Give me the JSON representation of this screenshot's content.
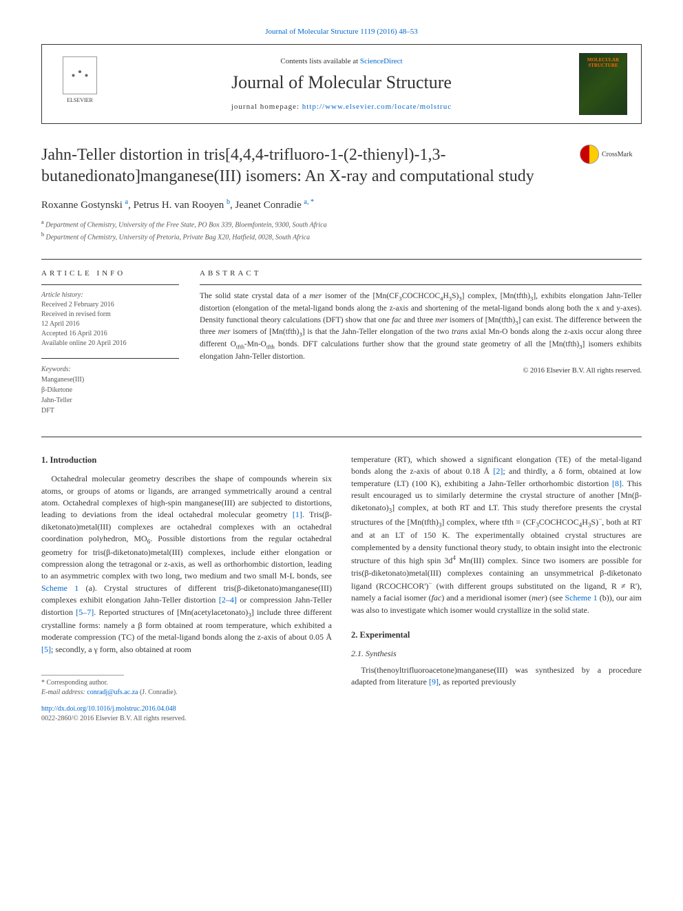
{
  "top_citation": "Journal of Molecular Structure 1119 (2016) 48–53",
  "header": {
    "contents_prefix": "Contents lists available at ",
    "contents_link": "ScienceDirect",
    "journal_name": "Journal of Molecular Structure",
    "homepage_prefix": "journal homepage: ",
    "homepage_url": "http://www.elsevier.com/locate/molstruc",
    "publisher_logo_label": "ELSEVIER"
  },
  "title": "Jahn-Teller distortion in tris[4,4,4-trifluoro-1-(2-thienyl)-1,3-butanedionato]manganese(III) isomers: An X-ray and computational study",
  "crossmark_label": "CrossMark",
  "authors_html": "Roxanne Gostynski <sup class='author-sup'>a</sup>, Petrus H. van Rooyen <sup class='author-sup'>b</sup>, Jeanet Conradie <sup class='author-sup'>a, *</sup>",
  "affiliations": [
    {
      "sup": "a",
      "text": "Department of Chemistry, University of the Free State, PO Box 339, Bloemfontein, 9300, South Africa"
    },
    {
      "sup": "b",
      "text": "Department of Chemistry, University of Pretoria, Private Bag X20, Hatfield, 0028, South Africa"
    }
  ],
  "article_info": {
    "label": "ARTICLE INFO",
    "history_label": "Article history:",
    "lines": [
      "Received 2 February 2016",
      "Received in revised form",
      "12 April 2016",
      "Accepted 16 April 2016",
      "Available online 20 April 2016"
    ],
    "keywords_label": "Keywords:",
    "keywords": [
      "Manganese(III)",
      "β-Diketone",
      "Jahn-Teller",
      "DFT"
    ]
  },
  "abstract": {
    "label": "ABSTRACT",
    "text_html": "The solid state crystal data of a <i>mer</i> isomer of the [Mn(CF<sub>3</sub>COCHCOC<sub>4</sub>H<sub>3</sub>S)<sub>3</sub>] complex, [Mn(tfth)<sub>3</sub>], exhibits elongation Jahn-Teller distortion (elongation of the metal-ligand bonds along the z-axis and shortening of the metal-ligand bonds along both the x and y-axes). Density functional theory calculations (DFT) show that one <i>fac</i> and three <i>mer</i> isomers of [Mn(tfth)<sub>3</sub>] can exist. The difference between the three <i>mer</i> isomers of [Mn(tfth)<sub>3</sub>] is that the Jahn-Teller elongation of the two <i>trans</i> axial Mn-O bonds along the z-axis occur along three different O<sub>tfth</sub>-Mn-O<sub>tfth</sub> bonds. DFT calculations further show that the ground state geometry of all the [Mn(tfth)<sub>3</sub>] isomers exhibits elongation Jahn-Teller distortion.",
    "copyright": "© 2016 Elsevier B.V. All rights reserved."
  },
  "body": {
    "intro_heading": "1. Introduction",
    "intro_col1_html": "Octahedral molecular geometry describes the shape of compounds wherein six atoms, or groups of atoms or ligands, are arranged symmetrically around a central atom. Octahedral complexes of high-spin manganese(III) are subjected to distortions, leading to deviations from the ideal octahedral molecular geometry <a class='ref'>[1]</a>. Tris(β-diketonato)metal(III) complexes are octahedral complexes with an octahedral coordination polyhedron, MO<sub>6</sub>. Possible distortions from the regular octahedral geometry for tris(β-diketonato)metal(III) complexes, include either elongation or compression along the tetragonal or z-axis, as well as orthorhombic distortion, leading to an asymmetric complex with two long, two medium and two small M-L bonds, see <a class='ref'>Scheme 1</a> (a). Crystal structures of different tris(β-diketonato)manganese(III) complexes exhibit elongation Jahn-Teller distortion <a class='ref'>[2–4]</a> or compression Jahn-Teller distortion <a class='ref'>[5–7]</a>. Reported structures of [Mn(acetylacetonato)<sub>3</sub>] include three different crystalline forms: namely a β form obtained at room temperature, which exhibited a moderate compression (TC) of the metal-ligand bonds along the z-axis of about 0.05 Å <a class='ref'>[5]</a>; secondly, a γ form, also obtained at room",
    "intro_col2_html": "temperature (RT), which showed a significant elongation (TE) of the metal-ligand bonds along the z-axis of about 0.18 Å <a class='ref'>[2]</a>; and thirdly, a δ form, obtained at low temperature (LT) (100 K), exhibiting a Jahn-Teller orthorhombic distortion <a class='ref'>[8]</a>. This result encouraged us to similarly determine the crystal structure of another [Mn(β-diketonato)<sub>3</sub>] complex, at both RT and LT. This study therefore presents the crystal structures of the [Mn(tfth)<sub>3</sub>] complex, where tfth = (CF<sub>3</sub>COCHCOC<sub>4</sub>H<sub>3</sub>S)<sup>−</sup>, both at RT and at an LT of 150 K. The experimentally obtained crystal structures are complemented by a density functional theory study, to obtain insight into the electronic structure of this high spin 3d<sup>4</sup> Mn(III) complex. Since two isomers are possible for tris(β-diketonato)metal(III) complexes containing an unsymmetrical β-diketonato ligand (RCOCHCOR')<sup>−</sup> (with different groups substituted on the ligand, R ≠ R'), namely a facial isomer (<i>fac</i>) and a meridional isomer (<i>mer</i>) (see <a class='ref'>Scheme 1</a> (b)), our aim was also to investigate which isomer would crystallize in the solid state.",
    "exp_heading": "2. Experimental",
    "synth_heading": "2.1. Synthesis",
    "synth_html": "Tris(thenoyltrifluoroacetone)manganese(III) was synthesized by a procedure adapted from literature <a class='ref'>[9]</a>, as reported previously"
  },
  "footer": {
    "corresponding": "* Corresponding author.",
    "email_label": "E-mail address: ",
    "email": "conradj@ufs.ac.za",
    "email_suffix": " (J. Conradie).",
    "doi": "http://dx.doi.org/10.1016/j.molstruc.2016.04.048",
    "issn_line": "0022-2860/© 2016 Elsevier B.V. All rights reserved."
  }
}
